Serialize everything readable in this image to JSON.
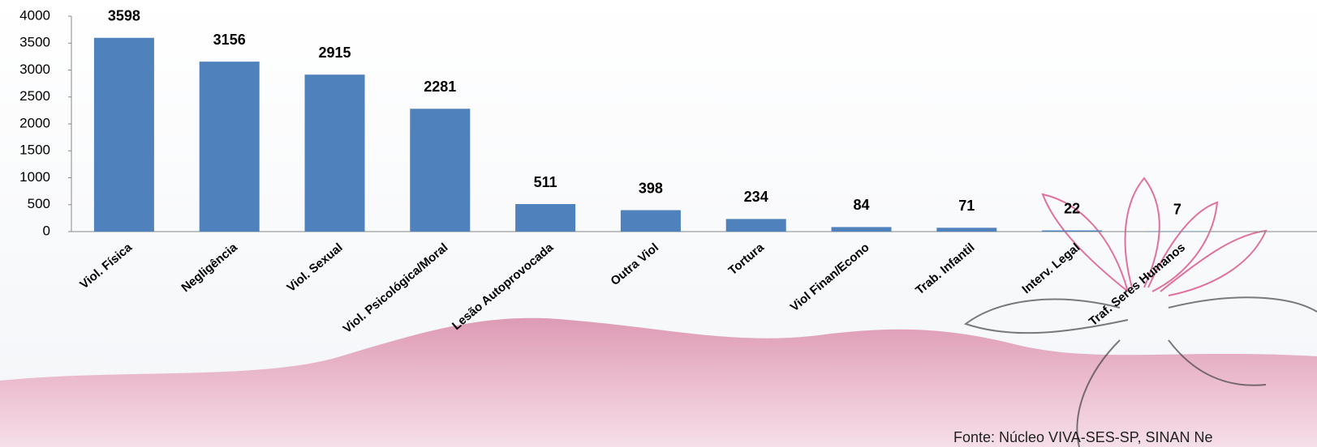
{
  "chart_data": {
    "type": "bar",
    "categories": [
      "Viol. Física",
      "Negligência",
      "Viol. Sexual",
      "Viol. Psicológica/Moral",
      "Lesão Autoprovocada",
      "Outra Viol",
      "Tortura",
      "Viol Finan/Econo",
      "Trab. Infantil",
      "Interv. Legal",
      "Traf. Seres Humanos"
    ],
    "values": [
      3598,
      3156,
      2915,
      2281,
      511,
      398,
      234,
      84,
      71,
      22,
      7
    ],
    "color": "#4f81bd",
    "ylim": [
      0,
      4000
    ],
    "yticks": [
      0,
      500,
      1000,
      1500,
      2000,
      2500,
      3000,
      3500,
      4000
    ],
    "grid": false,
    "source": "Fonte: Núcleo VIVA-SES-SP, SINAN Ne"
  }
}
